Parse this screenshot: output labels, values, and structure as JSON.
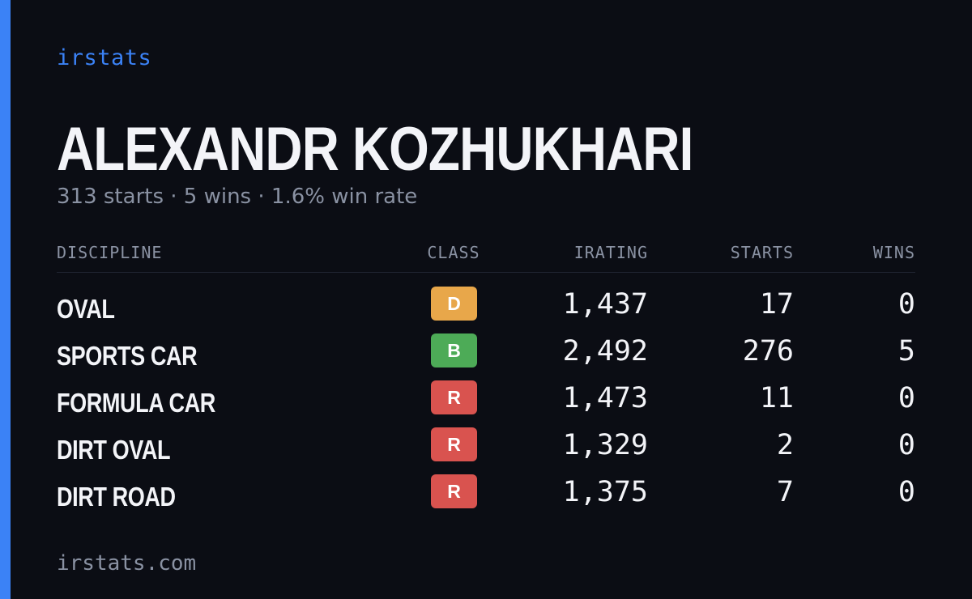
{
  "brand": "irstats",
  "driver": {
    "name": "ALEXANDR KOZHUKHARI",
    "summary": "313 starts · 5 wins · 1.6% win rate"
  },
  "colors": {
    "accent": "#3b82f6",
    "class_D": "#e8a74a",
    "class_B": "#4dab57",
    "class_R": "#d9534f"
  },
  "table": {
    "headers": {
      "discipline": "DISCIPLINE",
      "class": "CLASS",
      "irating": "IRATING",
      "starts": "STARTS",
      "wins": "WINS"
    },
    "rows": [
      {
        "discipline": "OVAL",
        "class": "D",
        "irating": "1,437",
        "starts": "17",
        "wins": "0"
      },
      {
        "discipline": "SPORTS CAR",
        "class": "B",
        "irating": "2,492",
        "starts": "276",
        "wins": "5"
      },
      {
        "discipline": "FORMULA CAR",
        "class": "R",
        "irating": "1,473",
        "starts": "11",
        "wins": "0"
      },
      {
        "discipline": "DIRT OVAL",
        "class": "R",
        "irating": "1,329",
        "starts": "2",
        "wins": "0"
      },
      {
        "discipline": "DIRT ROAD",
        "class": "R",
        "irating": "1,375",
        "starts": "7",
        "wins": "0"
      }
    ]
  },
  "footer": "irstats.com"
}
